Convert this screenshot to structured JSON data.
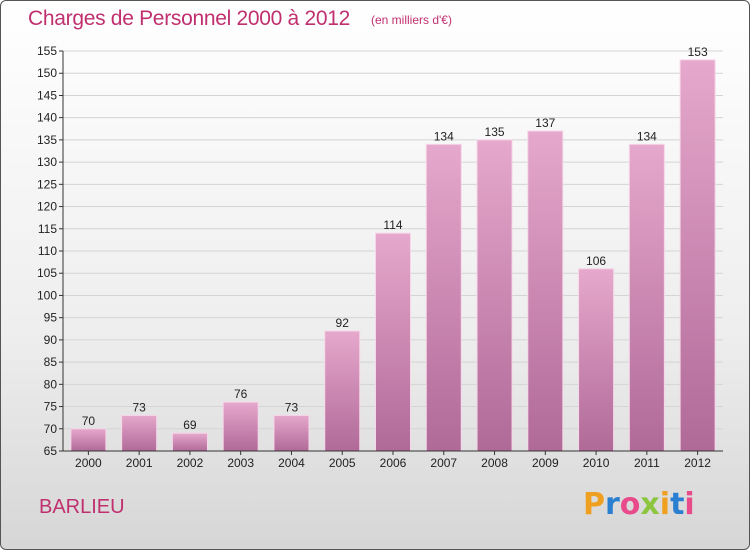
{
  "header": {
    "title": "Charges de Personnel 2000 à 2012",
    "subtitle": "(en milliers d'€)"
  },
  "commune": "BARLIEU",
  "logo": {
    "text": "Proxiti",
    "letters": [
      "P",
      "r",
      "o",
      "x",
      "i",
      "t",
      "i"
    ],
    "letter_colors": [
      "#f0a020",
      "#2a7fd0",
      "#e84a8a",
      "#8cc63f",
      "#f0a020",
      "#2a7fd0",
      "#e84a8a"
    ]
  },
  "colors": {
    "accent": "#c0306f",
    "bar_top": "#e6a8cc",
    "bar_bottom": "#b06a98"
  },
  "chart_data": {
    "type": "bar",
    "title": "Charges de Personnel 2000 à 2012",
    "subtitle": "(en milliers d'€)",
    "categories": [
      "2000",
      "2001",
      "2002",
      "2003",
      "2004",
      "2005",
      "2006",
      "2007",
      "2008",
      "2009",
      "2010",
      "2011",
      "2012"
    ],
    "values": [
      70,
      73,
      69,
      76,
      73,
      92,
      114,
      134,
      135,
      137,
      106,
      134,
      153
    ],
    "ylim": [
      65,
      155
    ],
    "yticks": [
      65,
      70,
      75,
      80,
      85,
      90,
      95,
      100,
      105,
      110,
      115,
      120,
      125,
      130,
      135,
      140,
      145,
      150,
      155
    ],
    "grid": true,
    "xlabel": "",
    "ylabel": ""
  }
}
